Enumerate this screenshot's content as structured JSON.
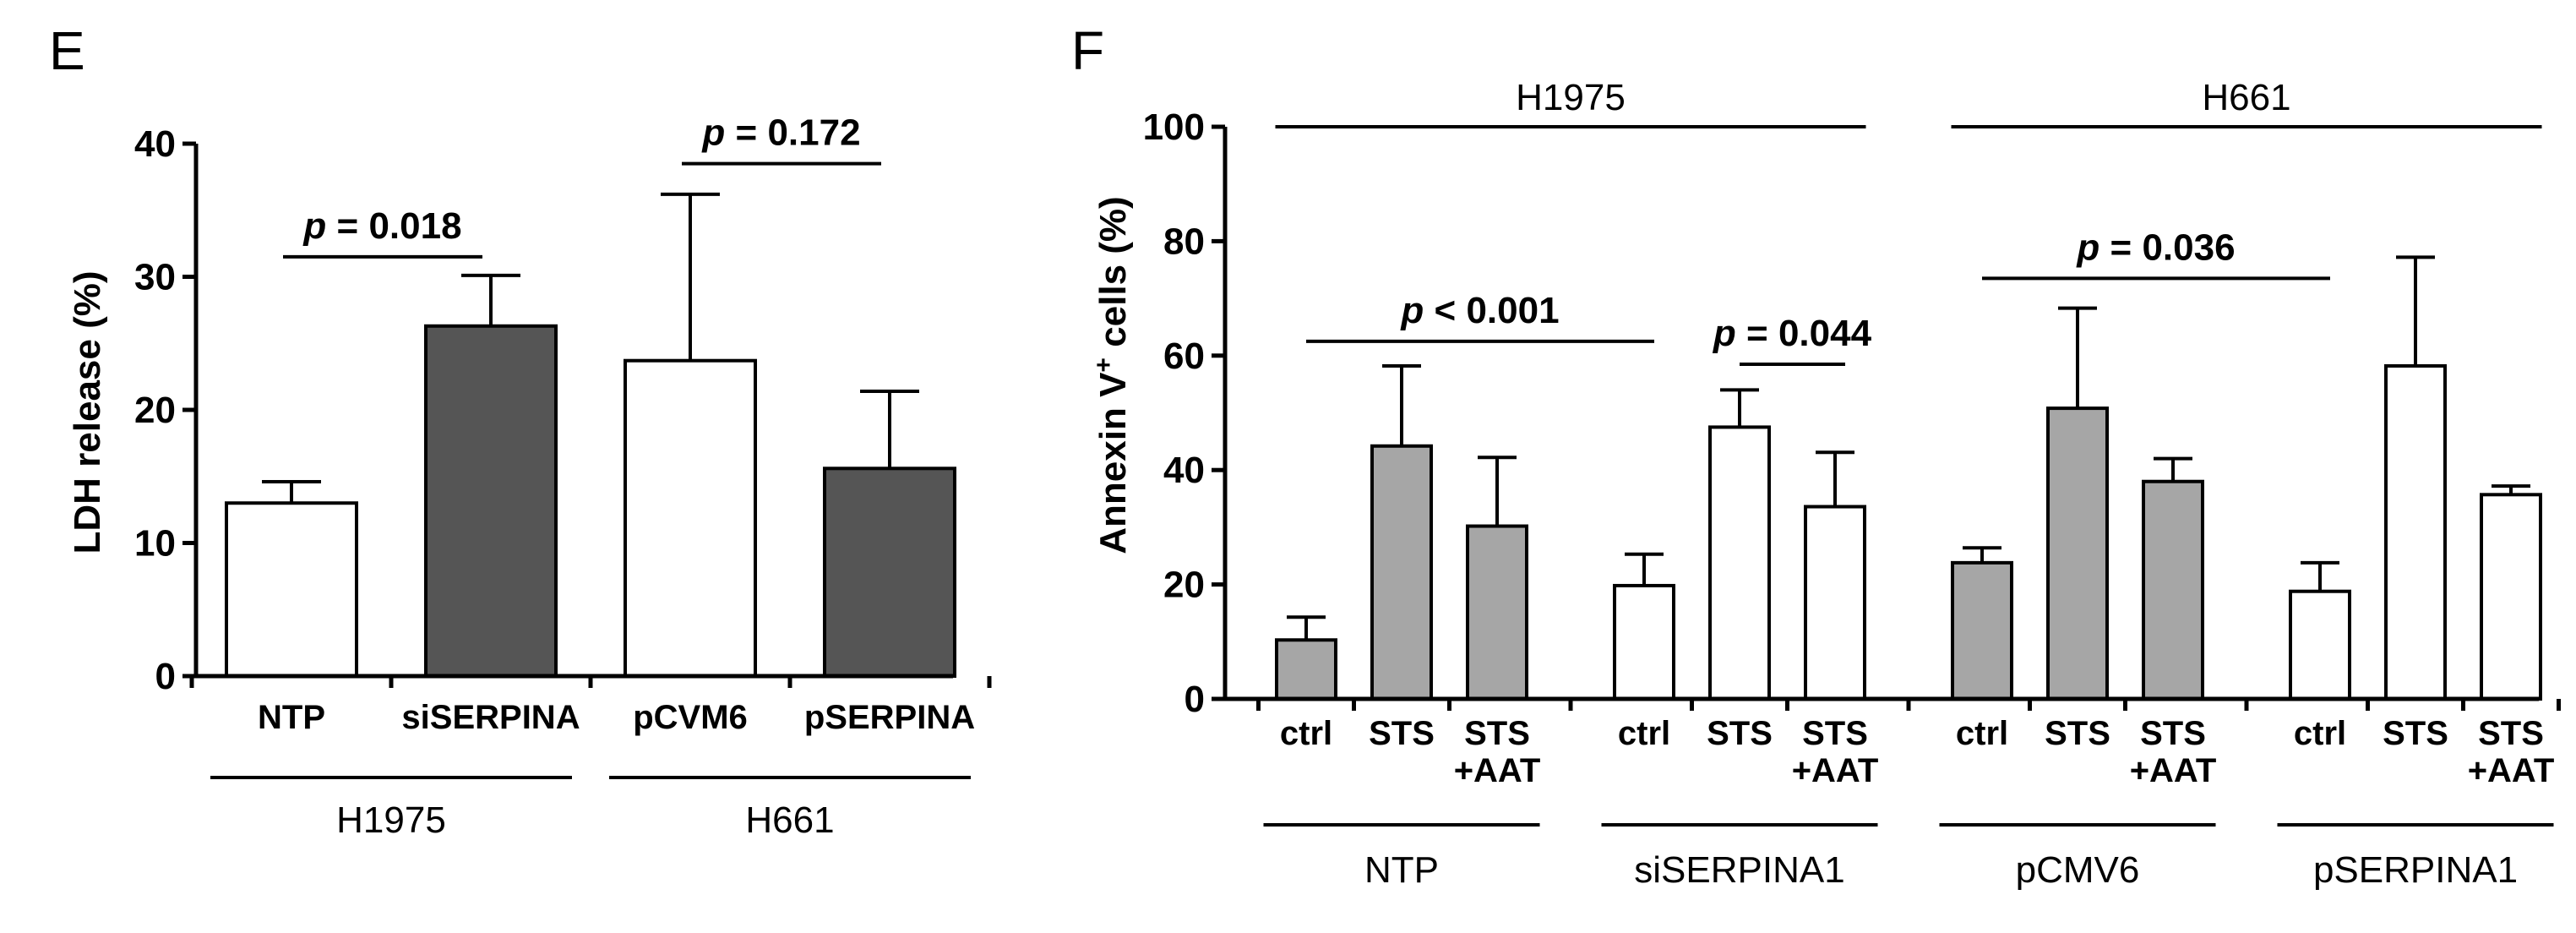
{
  "figure": {
    "left_panel_letter": "E",
    "right_panel_letter": "F"
  },
  "chart_data": [
    {
      "type": "bar",
      "panel": "E",
      "ylabel": "LDH release (%)",
      "ylim": [
        0,
        40
      ],
      "yticks": [
        0,
        10,
        20,
        30,
        40
      ],
      "categories": [
        "NTP",
        "siSERPINA",
        "pCVM6",
        "pSERPINA"
      ],
      "values": [
        13,
        26.3,
        23.7,
        15.6
      ],
      "errors": [
        1.6,
        3.8,
        12.5,
        5.8
      ],
      "fills": [
        "#ffffff",
        "#555555",
        "#ffffff",
        "#555555"
      ],
      "groups": [
        {
          "label": "H1975",
          "from": 0,
          "to": 1
        },
        {
          "label": "H661",
          "from": 2,
          "to": 3
        }
      ],
      "significance": [
        {
          "text": "p = 0.018",
          "p_label": "p",
          "rest": " = 0.018",
          "from": 0,
          "to": 1,
          "y": 31.5
        },
        {
          "text": "p = 0.172",
          "p_label": "p",
          "rest": " = 0.172",
          "from": 2,
          "to": 3,
          "y": 38.5
        }
      ]
    },
    {
      "type": "bar",
      "panel": "F",
      "ylabel": "Annexin V+ cells (%)",
      "ylabel_main": "Annexin V",
      "ylabel_sup": "+",
      "ylabel_end": " cells (%)",
      "ylim": [
        0,
        100
      ],
      "yticks": [
        0,
        20,
        40,
        60,
        80,
        100
      ],
      "categories": [
        "ctrl",
        "STS",
        "STS +AAT",
        "ctrl",
        "STS",
        "STS +AAT",
        "ctrl",
        "STS",
        "STS +AAT",
        "ctrl",
        "STS",
        "STS +AAT"
      ],
      "category_lines": [
        [
          "ctrl"
        ],
        [
          "STS"
        ],
        [
          "STS",
          "+AAT"
        ],
        [
          "ctrl"
        ],
        [
          "STS"
        ],
        [
          "STS",
          "+AAT"
        ],
        [
          "ctrl"
        ],
        [
          "STS"
        ],
        [
          "STS",
          "+AAT"
        ],
        [
          "ctrl"
        ],
        [
          "STS"
        ],
        [
          "STS",
          "+AAT"
        ]
      ],
      "values": [
        10.3,
        44.2,
        30.2,
        19.8,
        47.5,
        33.6,
        23.8,
        50.8,
        38,
        18.8,
        58.2,
        35.7
      ],
      "errors": [
        4,
        14,
        12,
        5.5,
        6.5,
        9.5,
        2.6,
        17.5,
        4,
        5,
        19,
        1.5
      ],
      "fills": [
        "#a6a6a6",
        "#a6a6a6",
        "#a6a6a6",
        "#ffffff",
        "#ffffff",
        "#ffffff",
        "#a6a6a6",
        "#a6a6a6",
        "#a6a6a6",
        "#ffffff",
        "#ffffff",
        "#ffffff"
      ],
      "groups": [
        {
          "label": "NTP",
          "from": 0,
          "to": 2
        },
        {
          "label": "siSERPINA1",
          "from": 3,
          "to": 5
        },
        {
          "label": "pCMV6",
          "from": 6,
          "to": 8
        },
        {
          "label": "pSERPINA1",
          "from": 9,
          "to": 11
        }
      ],
      "top_groups": [
        {
          "label": "H1975",
          "from": 0,
          "to": 5
        },
        {
          "label": "H661",
          "from": 6,
          "to": 11
        }
      ],
      "significance": [
        {
          "text": "p < 0.001",
          "p_label": "p",
          "rest": " < 0.001",
          "from": 0,
          "to": 3,
          "y": 62.5
        },
        {
          "text": "p = 0.044",
          "p_label": "p",
          "rest": " = 0.044",
          "from": 4,
          "to": 5,
          "y": 58.5
        },
        {
          "text": "p = 0.036",
          "p_label": "p",
          "rest": " = 0.036",
          "from": 6,
          "to": 9,
          "y": 73.5
        }
      ]
    }
  ]
}
